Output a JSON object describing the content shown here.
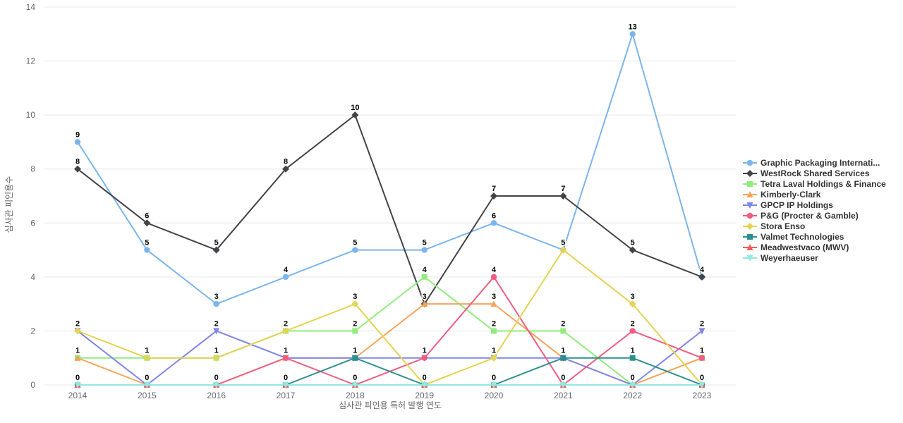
{
  "chart_data": {
    "type": "line",
    "x": [
      2014,
      2015,
      2016,
      2017,
      2018,
      2019,
      2020,
      2021,
      2022,
      2023
    ],
    "xlabel": "심사관 피인용 특허 발행 연도",
    "ylabel": "심사관 피인용수",
    "ylim": [
      0,
      14
    ],
    "yticks": [
      0,
      2,
      4,
      6,
      8,
      10,
      12,
      14
    ],
    "grid": "horizontal",
    "grid_color": "#e6e6e6",
    "axis_label_color": "#666666",
    "data_label_color": "#000000",
    "legend_position": "right",
    "legend_text_color": "#333333",
    "data_labels": true,
    "series": [
      {
        "name": "Graphic Packaging Internati...",
        "color": "#7cb5ec",
        "marker": "circle",
        "values": [
          9,
          5,
          3,
          4,
          5,
          5,
          6,
          5,
          13,
          4
        ]
      },
      {
        "name": "WestRock Shared Services",
        "color": "#434348",
        "marker": "diamond",
        "values": [
          8,
          6,
          5,
          8,
          10,
          3,
          7,
          7,
          5,
          4
        ]
      },
      {
        "name": "Tetra Laval Holdings & Finance",
        "color": "#90ed7d",
        "marker": "square",
        "values": [
          1,
          1,
          1,
          2,
          2,
          4,
          2,
          2,
          0,
          1
        ]
      },
      {
        "name": "Kimberly-Clark",
        "color": "#f7a35c",
        "marker": "triangle",
        "values": [
          1,
          0,
          0,
          1,
          1,
          3,
          3,
          1,
          0,
          1
        ]
      },
      {
        "name": "GPCP IP Holdings",
        "color": "#8085e9",
        "marker": "triangle-down",
        "values": [
          2,
          0,
          2,
          1,
          1,
          1,
          1,
          1,
          0,
          2
        ]
      },
      {
        "name": "P&G (Procter & Gamble)",
        "color": "#f15c80",
        "marker": "circle",
        "values": [
          0,
          0,
          0,
          1,
          0,
          1,
          4,
          0,
          2,
          1
        ]
      },
      {
        "name": "Stora Enso",
        "color": "#e4d354",
        "marker": "diamond",
        "values": [
          2,
          1,
          1,
          2,
          3,
          0,
          1,
          5,
          3,
          0
        ]
      },
      {
        "name": "Valmet Technologies",
        "color": "#2b908f",
        "marker": "square",
        "values": [
          0,
          0,
          0,
          0,
          1,
          0,
          0,
          1,
          1,
          0
        ]
      },
      {
        "name": "Meadwestvaco (MWV)",
        "color": "#f45b5b",
        "marker": "triangle",
        "values": [
          0,
          0,
          0,
          0,
          0,
          0,
          0,
          0,
          0,
          0
        ]
      },
      {
        "name": "Weyerhaeuser",
        "color": "#91e8e1",
        "marker": "triangle-down",
        "values": [
          0,
          0,
          0,
          0,
          0,
          0,
          0,
          0,
          0,
          0
        ]
      }
    ]
  }
}
